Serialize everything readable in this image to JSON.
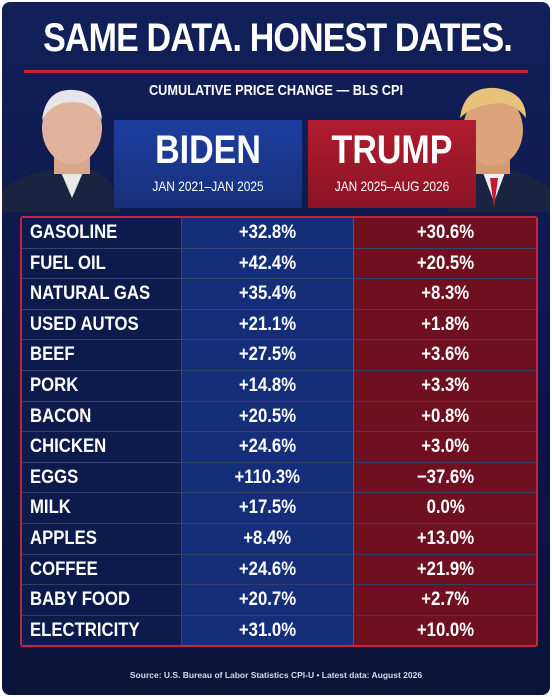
{
  "header": {
    "title": "SAME DATA. HONEST DATES.",
    "subtitle": "CUMULATIVE PRICE CHANGE — BLS CPI"
  },
  "columns": [
    {
      "name": "BIDEN",
      "dates": "JAN 2021–JAN 2025"
    },
    {
      "name": "TRUMP",
      "dates": "JAN 2025–AUG 2026"
    }
  ],
  "table": {
    "rows": [
      [
        "GASOLINE",
        "+32.8%",
        "+30.6%"
      ],
      [
        "FUEL OIL",
        "+42.4%",
        "+20.5%"
      ],
      [
        "NATURAL GAS",
        "+35.4%",
        "+8.3%"
      ],
      [
        "USED AUTOS",
        "+21.1%",
        "+1.8%"
      ],
      [
        "BEEF",
        "+27.5%",
        "+3.6%"
      ],
      [
        "PORK",
        "+14.8%",
        "+3.3%"
      ],
      [
        "BACON",
        "+20.5%",
        "+0.8%"
      ],
      [
        "CHICKEN",
        "+24.6%",
        "+3.0%"
      ],
      [
        "EGGS",
        "+110.3%",
        "−37.6%"
      ],
      [
        "MILK",
        "+17.5%",
        "0.0%"
      ],
      [
        "APPLES",
        "+8.4%",
        "+13.0%"
      ],
      [
        "COFFEE",
        "+24.6%",
        "+21.9%"
      ],
      [
        "BABY FOOD",
        "+20.7%",
        "+2.7%"
      ],
      [
        "ELECTRICITY",
        "+31.0%",
        "+10.0%"
      ]
    ]
  },
  "footer": {
    "source": "Source: U.S. Bureau of Labor Statistics CPI-U • Latest data: August 2026"
  }
}
